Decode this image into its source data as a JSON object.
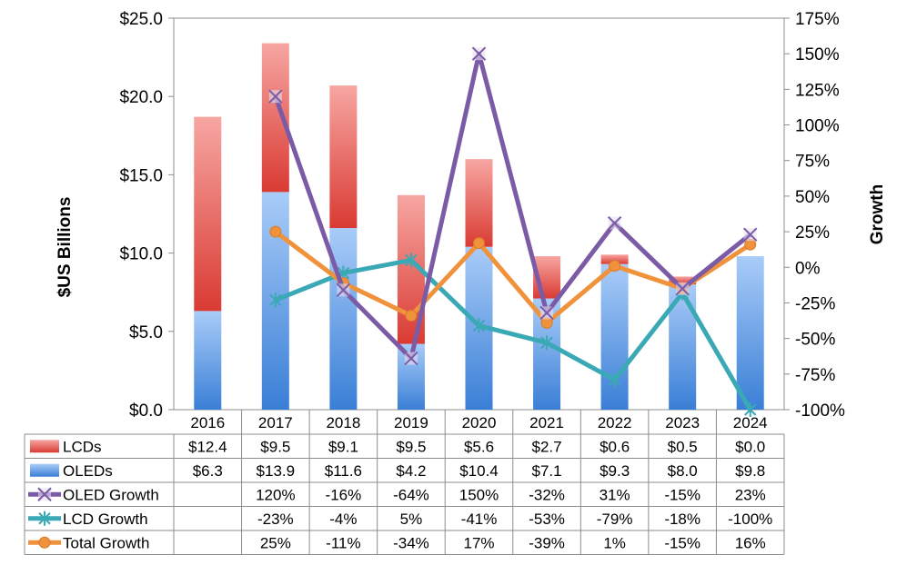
{
  "chart_data": {
    "type": "bar+line",
    "categories": [
      "2016",
      "2017",
      "2018",
      "2019",
      "2020",
      "2021",
      "2022",
      "2023",
      "2024"
    ],
    "ylabel": "$US Billions",
    "y2label": "Growth",
    "ylim": [
      0,
      25
    ],
    "y2lim": [
      -100,
      175
    ],
    "y_ticks": [
      "$0.0",
      "$5.0",
      "$10.0",
      "$15.0",
      "$20.0",
      "$25.0"
    ],
    "y2_ticks": [
      "-100%",
      "-75%",
      "-50%",
      "-25%",
      "0%",
      "25%",
      "50%",
      "75%",
      "100%",
      "125%",
      "150%",
      "175%"
    ],
    "bars": [
      {
        "name": "OLEDs",
        "values": [
          6.3,
          13.9,
          11.6,
          4.2,
          10.4,
          7.1,
          9.3,
          8.0,
          9.8
        ],
        "color": "#5b9be8"
      },
      {
        "name": "LCDs",
        "values": [
          12.4,
          9.5,
          9.1,
          9.5,
          5.6,
          2.7,
          0.6,
          0.5,
          0.0
        ],
        "color": "#e8544c"
      }
    ],
    "lines": [
      {
        "name": "OLED Growth",
        "values": [
          null,
          120,
          -16,
          -64,
          150,
          -32,
          31,
          -15,
          23
        ],
        "color": "#7b5aa6",
        "marker": "x"
      },
      {
        "name": "LCD Growth",
        "values": [
          null,
          -23,
          -4,
          5,
          -41,
          -53,
          -79,
          -18,
          -100
        ],
        "color": "#3aa9b5",
        "marker": "star"
      },
      {
        "name": "Total Growth",
        "values": [
          null,
          25,
          -11,
          -34,
          17,
          -39,
          1,
          -15,
          16
        ],
        "color": "#f0923b",
        "marker": "circle"
      }
    ],
    "table": [
      {
        "name": "LCDs",
        "cells": [
          "$12.4",
          "$9.5",
          "$9.1",
          "$9.5",
          "$5.6",
          "$2.7",
          "$0.6",
          "$0.5",
          "$0.0"
        ]
      },
      {
        "name": "OLEDs",
        "cells": [
          "$6.3",
          "$13.9",
          "$11.6",
          "$4.2",
          "$10.4",
          "$7.1",
          "$9.3",
          "$8.0",
          "$9.8"
        ]
      },
      {
        "name": "OLED Growth",
        "cells": [
          "",
          "120%",
          "-16%",
          "-64%",
          "150%",
          "-32%",
          "31%",
          "-15%",
          "23%"
        ]
      },
      {
        "name": "LCD Growth",
        "cells": [
          "",
          "-23%",
          "-4%",
          "5%",
          "-41%",
          "-53%",
          "-79%",
          "-18%",
          "-100%"
        ]
      },
      {
        "name": "Total Growth",
        "cells": [
          "",
          "25%",
          "-11%",
          "-34%",
          "17%",
          "-39%",
          "1%",
          "-15%",
          "16%"
        ]
      }
    ]
  }
}
